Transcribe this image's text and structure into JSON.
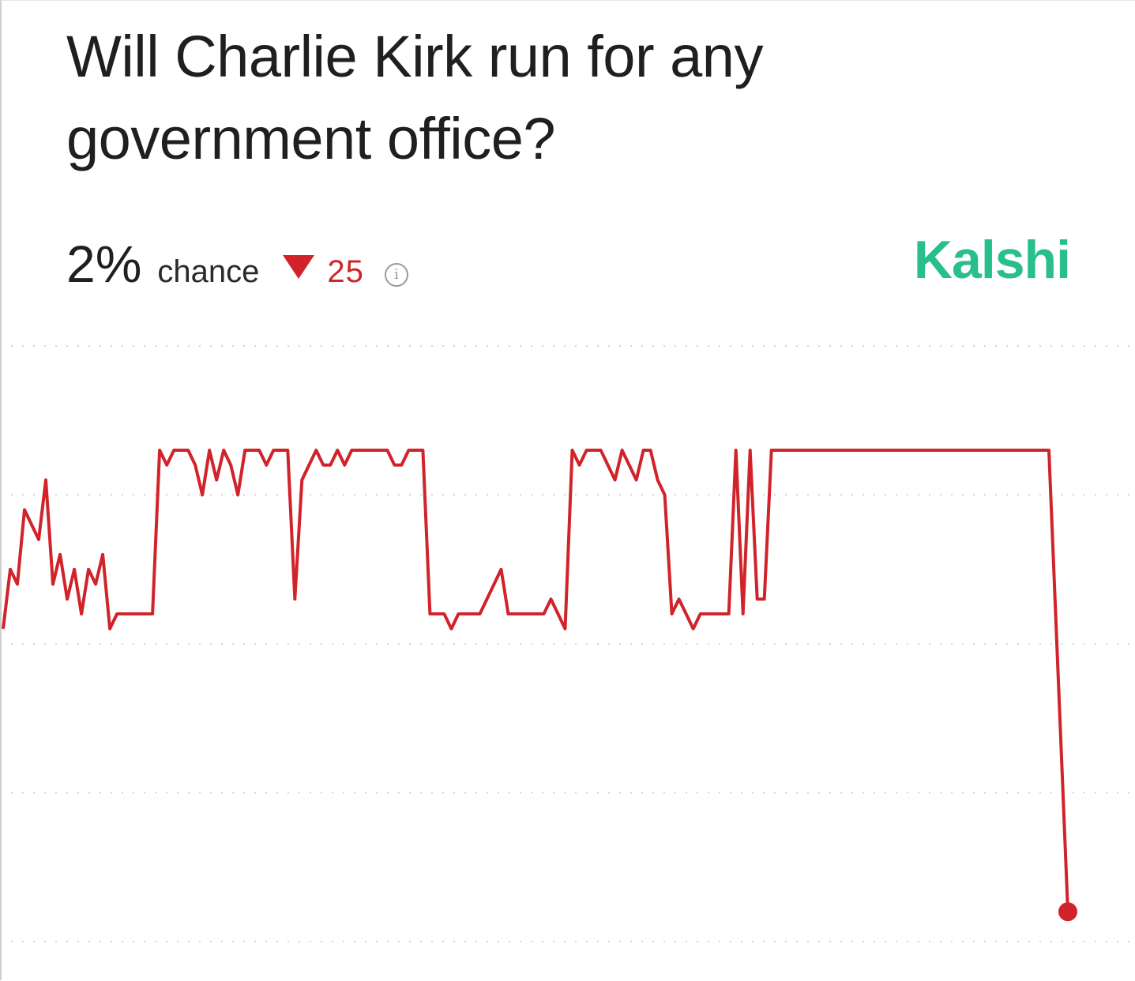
{
  "header": {
    "title": "Will Charlie Kirk run for any government office?"
  },
  "stat": {
    "value": "2%",
    "label": "chance",
    "change": "25",
    "change_direction": "down",
    "info_icon": "info-icon"
  },
  "brand": {
    "name": "Kalshi",
    "color": "#28bf8d"
  },
  "colors": {
    "line": "#d0232a",
    "grid": "#d4d4d4",
    "text": "#1f1f1f"
  },
  "chart_data": {
    "type": "line",
    "title": "",
    "xlabel": "",
    "ylabel": "",
    "ylim": [
      0,
      40
    ],
    "gridlines": [
      0,
      10,
      20,
      30,
      40
    ],
    "grid": true,
    "series": [
      {
        "values": [
          21,
          25,
          24,
          29,
          28,
          27,
          31,
          24,
          26,
          23,
          25,
          22,
          25,
          24,
          26,
          21,
          22,
          22,
          22,
          22,
          22,
          22,
          33,
          32,
          33,
          33,
          33,
          32,
          30,
          33,
          31,
          33,
          32,
          30,
          33,
          33,
          33,
          32,
          33,
          33,
          33,
          23,
          31,
          32,
          33,
          32,
          32,
          33,
          32,
          33,
          33,
          33,
          33,
          33,
          33,
          32,
          32,
          33,
          33,
          33,
          22,
          22,
          22,
          21,
          22,
          22,
          22,
          22,
          23,
          24,
          25,
          22,
          22,
          22,
          22,
          22,
          22,
          23,
          22,
          21,
          33,
          32,
          33,
          33,
          33,
          32,
          31,
          33,
          32,
          31,
          33,
          33,
          31,
          30,
          22,
          23,
          22,
          21,
          22,
          22,
          22,
          22,
          22,
          33,
          22,
          33,
          23,
          23,
          33,
          33,
          33,
          33,
          33,
          33,
          33,
          33,
          33,
          33,
          33,
          33,
          33,
          33,
          33,
          33,
          33,
          33,
          33,
          33,
          33,
          33,
          33,
          33,
          33,
          33,
          33,
          33,
          33,
          33,
          33,
          33,
          33,
          33,
          33,
          33,
          33,
          33,
          33,
          33,
          2
        ]
      }
    ],
    "current_value": 2,
    "current_marker": true
  }
}
